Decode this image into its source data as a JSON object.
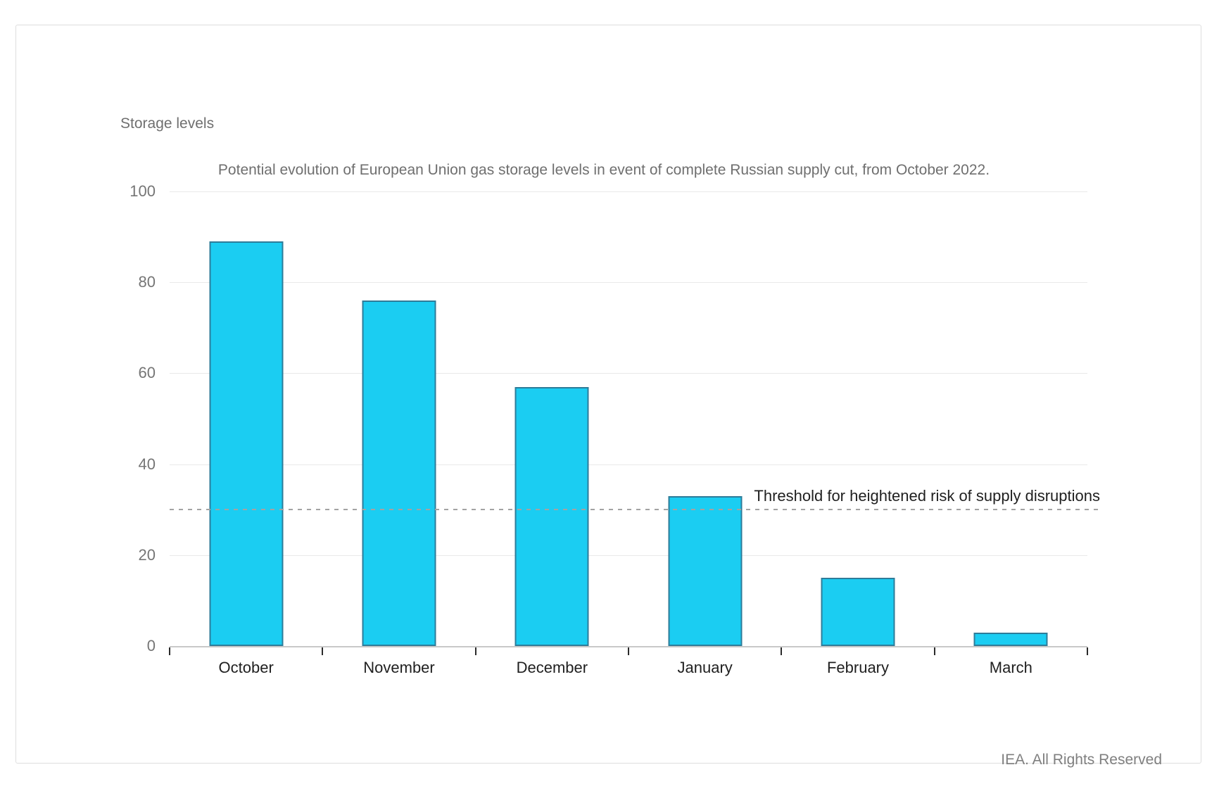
{
  "page": {
    "footer": "IEA. All Rights Reserved"
  },
  "chart_data": {
    "type": "bar",
    "title": "Potential evolution of European Union gas storage levels in event of complete Russian supply cut, from October 2022.",
    "ylabel": "Storage levels",
    "categories": [
      "October",
      "November",
      "December",
      "January",
      "February",
      "March"
    ],
    "values": [
      89,
      76,
      57,
      33,
      15,
      3
    ],
    "ylim": [
      0,
      100
    ],
    "yticks": [
      0,
      20,
      40,
      60,
      80,
      100
    ],
    "grid": true,
    "legend": "none",
    "threshold": {
      "value": 30,
      "style": "dashed",
      "label": "Threshold for heightened risk of supply disruptions"
    },
    "colors": {
      "bar_fill": "#1BCDF2",
      "bar_border": "#2E7C99",
      "gridline": "#e9e9e9",
      "axis_line": "#c9c9c9",
      "threshold_line": "#a3a3a3",
      "muted_text": "#6f6f6f",
      "dark_text": "#1f1f1f"
    }
  }
}
